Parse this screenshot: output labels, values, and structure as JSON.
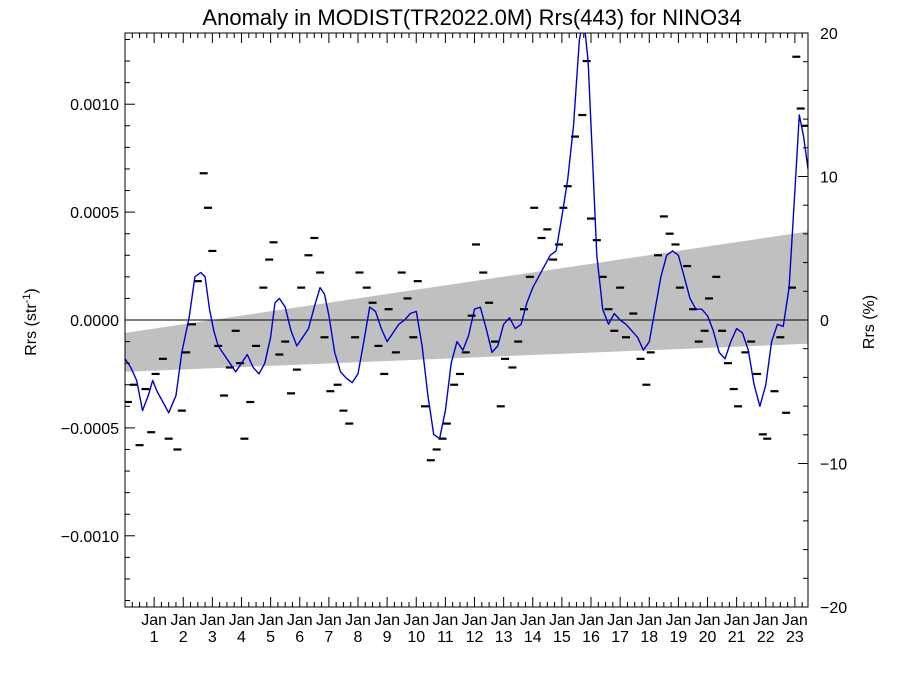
{
  "chart_data": {
    "type": "line",
    "title": "Anomaly in MODIST(TR2022.0M) Rrs(443) for NINO34",
    "ylabel_left": "Rrs (str",
    "ylabel_left_sup": "-1",
    "ylabel_left_end": ")",
    "ylabel_right": "Rrs (%)",
    "ylim_left": [
      -0.00133,
      0.00133
    ],
    "ylim_right": [
      -20,
      20
    ],
    "xlim": [
      0,
      23.45
    ],
    "left_ticks": [
      {
        "v": 0.001,
        "label": "0.0010"
      },
      {
        "v": 0.0005,
        "label": "0.0005"
      },
      {
        "v": 0.0,
        "label": "0.0000"
      },
      {
        "v": -0.0005,
        "label": "−0.0005"
      },
      {
        "v": -0.001,
        "label": "−0.0010"
      }
    ],
    "right_ticks": [
      {
        "v": 20,
        "label": "20"
      },
      {
        "v": 10,
        "label": "10"
      },
      {
        "v": 0,
        "label": "0"
      },
      {
        "v": -10,
        "label": "−10"
      },
      {
        "v": -20,
        "label": "−20"
      }
    ],
    "x_ticks": [
      {
        "x": 1,
        "month": "Jan",
        "year": "1"
      },
      {
        "x": 2,
        "month": "Jan",
        "year": "2"
      },
      {
        "x": 3,
        "month": "Jan",
        "year": "3"
      },
      {
        "x": 4,
        "month": "Jan",
        "year": "4"
      },
      {
        "x": 5,
        "month": "Jan",
        "year": "5"
      },
      {
        "x": 6,
        "month": "Jan",
        "year": "6"
      },
      {
        "x": 7,
        "month": "Jan",
        "year": "7"
      },
      {
        "x": 8,
        "month": "Jan",
        "year": "8"
      },
      {
        "x": 9,
        "month": "Jan",
        "year": "9"
      },
      {
        "x": 10,
        "month": "Jan",
        "year": "10"
      },
      {
        "x": 11,
        "month": "Jan",
        "year": "11"
      },
      {
        "x": 12,
        "month": "Jan",
        "year": "12"
      },
      {
        "x": 13,
        "month": "Jan",
        "year": "13"
      },
      {
        "x": 14,
        "month": "Jan",
        "year": "14"
      },
      {
        "x": 15,
        "month": "Jan",
        "year": "15"
      },
      {
        "x": 16,
        "month": "Jan",
        "year": "16"
      },
      {
        "x": 17,
        "month": "Jan",
        "year": "17"
      },
      {
        "x": 18,
        "month": "Jan",
        "year": "18"
      },
      {
        "x": 19,
        "month": "Jan",
        "year": "19"
      },
      {
        "x": 20,
        "month": "Jan",
        "year": "20"
      },
      {
        "x": 21,
        "month": "Jan",
        "year": "21"
      },
      {
        "x": 22,
        "month": "Jan",
        "year": "22"
      },
      {
        "x": 23,
        "month": "Jan",
        "year": "23"
      }
    ],
    "trend_band": {
      "x": [
        0,
        23.45
      ],
      "lower": [
        -0.00024,
        -0.00011
      ],
      "upper": [
        -6e-05,
        0.00041
      ]
    },
    "zero_line": true,
    "series": [
      {
        "kind": "line",
        "color": "#0000cc",
        "x": [
          0.0,
          0.2,
          0.4,
          0.6,
          0.8,
          0.95,
          1.1,
          1.3,
          1.5,
          1.75,
          1.95,
          2.2,
          2.4,
          2.6,
          2.75,
          2.9,
          3.05,
          3.2,
          3.4,
          3.6,
          3.8,
          4.0,
          4.2,
          4.4,
          4.6,
          4.8,
          5.0,
          5.15,
          5.3,
          5.5,
          5.7,
          5.9,
          6.1,
          6.3,
          6.5,
          6.7,
          6.85,
          7.0,
          7.2,
          7.4,
          7.6,
          7.8,
          8.0,
          8.2,
          8.4,
          8.6,
          8.8,
          9.0,
          9.2,
          9.4,
          9.6,
          9.8,
          10.0,
          10.2,
          10.4,
          10.6,
          10.8,
          11.0,
          11.2,
          11.4,
          11.6,
          11.8,
          12.0,
          12.2,
          12.4,
          12.6,
          12.8,
          13.0,
          13.2,
          13.4,
          13.6,
          13.8,
          14.0,
          14.2,
          14.4,
          14.6,
          14.8,
          15.0,
          15.2,
          15.4,
          15.6,
          15.75,
          15.9,
          16.05,
          16.2,
          16.4,
          16.6,
          16.8,
          17.0,
          17.2,
          17.4,
          17.6,
          17.8,
          18.0,
          18.2,
          18.4,
          18.6,
          18.8,
          19.0,
          19.2,
          19.4,
          19.6,
          19.8,
          20.0,
          20.2,
          20.4,
          20.6,
          20.8,
          21.0,
          21.2,
          21.4,
          21.6,
          21.8,
          22.0,
          22.2,
          22.4,
          22.6,
          22.8,
          23.0,
          23.15,
          23.3,
          23.45
        ],
        "y": [
          -0.00018,
          -0.00022,
          -0.00028,
          -0.00042,
          -0.00035,
          -0.00028,
          -0.00033,
          -0.00038,
          -0.00043,
          -0.00035,
          -0.00015,
          1e-05,
          0.0002,
          0.00022,
          0.0002,
          5e-05,
          -5e-05,
          -0.00012,
          -0.00016,
          -0.0002,
          -0.00024,
          -0.0002,
          -0.00016,
          -0.00022,
          -0.00025,
          -0.0002,
          -8e-05,
          8e-05,
          0.0001,
          6e-05,
          -5e-05,
          -0.00012,
          -8e-05,
          -4e-05,
          6e-05,
          0.00015,
          0.00012,
          2e-05,
          -0.00015,
          -0.00024,
          -0.00027,
          -0.00029,
          -0.00025,
          -0.0001,
          6e-05,
          4e-05,
          -4e-05,
          -0.0001,
          -6e-05,
          -2e-05,
          0.0,
          3e-05,
          4e-05,
          -0.00012,
          -0.00035,
          -0.00053,
          -0.00055,
          -0.00042,
          -0.0002,
          -0.0001,
          -0.00014,
          -7e-05,
          5e-05,
          6e-05,
          -4e-05,
          -0.00015,
          -0.00012,
          -2e-05,
          1e-05,
          -4e-05,
          -2e-05,
          8e-05,
          0.00015,
          0.0002,
          0.00025,
          0.0003,
          0.00032,
          0.00048,
          0.00065,
          0.0009,
          0.0013,
          0.0014,
          0.0012,
          0.00075,
          0.0003,
          5e-05,
          -2e-05,
          3e-05,
          0.0,
          -2e-05,
          -5e-05,
          -8e-05,
          -0.00014,
          -0.0001,
          5e-05,
          0.0002,
          0.0003,
          0.00032,
          0.0003,
          0.0002,
          0.0001,
          5e-05,
          5e-05,
          2e-05,
          -5e-05,
          -0.00015,
          -0.00018,
          -0.0001,
          -4e-05,
          -6e-05,
          -0.00014,
          -0.0003,
          -0.0004,
          -0.0003,
          -0.0001,
          -2e-05,
          -3e-05,
          0.00015,
          0.0006,
          0.00095,
          0.00085,
          0.0007
        ]
      },
      {
        "kind": "points",
        "color": "#000000",
        "x": [
          0.1,
          0.3,
          0.5,
          0.7,
          0.9,
          1.05,
          1.3,
          1.5,
          1.8,
          1.95,
          2.1,
          2.3,
          2.5,
          2.7,
          2.85,
          3.0,
          3.2,
          3.4,
          3.6,
          3.8,
          3.95,
          4.1,
          4.3,
          4.5,
          4.75,
          4.95,
          5.1,
          5.3,
          5.5,
          5.7,
          5.9,
          6.05,
          6.3,
          6.5,
          6.7,
          6.85,
          7.05,
          7.3,
          7.5,
          7.7,
          7.9,
          8.05,
          8.3,
          8.5,
          8.7,
          8.9,
          9.05,
          9.3,
          9.5,
          9.7,
          9.9,
          10.05,
          10.3,
          10.5,
          10.7,
          10.9,
          11.05,
          11.3,
          11.5,
          11.7,
          11.9,
          12.05,
          12.3,
          12.5,
          12.7,
          12.9,
          13.05,
          13.3,
          13.5,
          13.7,
          13.9,
          14.05,
          14.3,
          14.5,
          14.7,
          14.9,
          15.05,
          15.2,
          15.45,
          15.7,
          15.85,
          16.0,
          16.2,
          16.4,
          16.6,
          16.8,
          17.0,
          17.2,
          17.45,
          17.7,
          17.9,
          18.05,
          18.3,
          18.5,
          18.7,
          18.9,
          19.05,
          19.3,
          19.5,
          19.7,
          19.9,
          20.05,
          20.3,
          20.5,
          20.7,
          20.9,
          21.05,
          21.3,
          21.5,
          21.7,
          21.9,
          22.05,
          22.3,
          22.5,
          22.7,
          22.9,
          23.05,
          23.2,
          23.35
        ],
        "y": [
          -0.00038,
          -0.0003,
          -0.00058,
          -0.00032,
          -0.00052,
          -0.00025,
          -0.00018,
          -0.00055,
          -0.0006,
          -0.00042,
          -0.00015,
          -2e-05,
          0.00018,
          0.00068,
          0.00052,
          0.00032,
          -0.00012,
          -0.00035,
          -0.00022,
          -5e-05,
          -0.0002,
          -0.00055,
          -0.00038,
          -0.00012,
          0.00015,
          0.00028,
          0.00036,
          -0.00016,
          -0.0001,
          -0.00034,
          -0.00023,
          0.00015,
          0.0003,
          0.00038,
          0.00022,
          -8e-05,
          -0.00033,
          -0.0003,
          -0.00042,
          -0.00048,
          -8e-05,
          0.00022,
          0.00015,
          8e-05,
          -0.00012,
          -0.00025,
          5e-05,
          -0.00015,
          0.00022,
          0.0001,
          -8e-05,
          0.00018,
          -0.0004,
          -0.00065,
          -0.0006,
          -0.00055,
          -0.00048,
          -0.0003,
          -0.00025,
          -0.00015,
          2e-05,
          0.00035,
          0.00022,
          8e-05,
          -0.0001,
          -0.0004,
          -0.00018,
          -0.00022,
          -0.0001,
          5e-05,
          0.0002,
          0.00052,
          0.00038,
          0.00042,
          0.00028,
          0.00035,
          0.00052,
          0.00062,
          0.00085,
          0.00095,
          0.0012,
          0.00047,
          0.00037,
          0.0002,
          5e-05,
          -5e-05,
          0.00015,
          -8e-05,
          3e-05,
          -0.00018,
          -0.0003,
          -0.00015,
          0.0003,
          0.00048,
          0.0004,
          0.00035,
          0.00015,
          0.00025,
          5e-05,
          -0.0001,
          -5e-05,
          0.0001,
          0.0002,
          -5e-05,
          -0.0002,
          -0.00032,
          -0.0004,
          -0.00015,
          -0.0001,
          -0.00025,
          -0.00053,
          -0.00055,
          -0.00033,
          -8e-05,
          -0.00043,
          0.00015,
          0.00122,
          0.00098,
          0.0009
        ]
      }
    ]
  }
}
